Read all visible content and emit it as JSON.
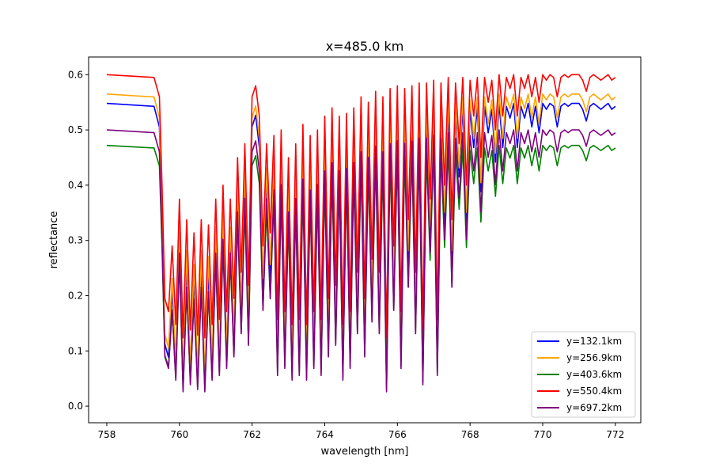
{
  "chart_data": {
    "type": "line",
    "title": "x=485.0 km",
    "xlabel": "wavelength [nm]",
    "ylabel": "reflectance",
    "xlim": [
      757.5,
      772.7
    ],
    "ylim": [
      -0.03,
      0.632
    ],
    "xticks": [
      758,
      760,
      762,
      764,
      766,
      768,
      770,
      772
    ],
    "yticks": [
      0.0,
      0.1,
      0.2,
      0.3,
      0.4,
      0.5,
      0.6
    ],
    "grid": false,
    "legend_position": "lower-right",
    "series": [
      {
        "name": "y=132.1km",
        "color": "#0000ff",
        "continuum": 0.548,
        "band_min": 0.015,
        "peak_scale": 0.915
      },
      {
        "name": "y=256.9km",
        "color": "#ffa500",
        "continuum": 0.565,
        "band_min": 0.03,
        "peak_scale": 0.94
      },
      {
        "name": "y=403.6km",
        "color": "#008000",
        "continuum": 0.472,
        "band_min": 0.01,
        "peak_scale": 0.89
      },
      {
        "name": "y=550.4km",
        "color": "#ff0000",
        "continuum": 0.6,
        "band_min": 0.1,
        "peak_scale": 0.95
      },
      {
        "name": "y=697.2km",
        "color": "#800080",
        "continuum": 0.5,
        "band_min": 0.005,
        "peak_scale": 0.85
      }
    ],
    "shape_x": [
      758.0,
      759.3,
      759.45,
      759.52,
      759.6,
      759.7,
      759.8,
      759.9,
      760.0,
      760.1,
      760.2,
      760.3,
      760.4,
      760.5,
      760.6,
      760.7,
      760.8,
      760.9,
      761.0,
      761.1,
      761.2,
      761.3,
      761.4,
      761.5,
      761.6,
      761.7,
      761.8,
      761.9,
      762.0,
      762.1,
      762.2,
      762.3,
      762.4,
      762.5,
      762.6,
      762.7,
      762.8,
      762.9,
      763.0,
      763.1,
      763.2,
      763.3,
      763.4,
      763.5,
      763.6,
      763.7,
      763.8,
      763.9,
      764.0,
      764.1,
      764.2,
      764.3,
      764.4,
      764.5,
      764.6,
      764.7,
      764.8,
      764.9,
      765.0,
      765.1,
      765.2,
      765.3,
      765.4,
      765.5,
      765.6,
      765.7,
      765.8,
      765.9,
      766.0,
      766.1,
      766.2,
      766.3,
      766.4,
      766.5,
      766.6,
      766.7,
      766.8,
      766.9,
      767.0,
      767.1,
      767.2,
      767.3,
      767.4,
      767.5,
      767.6,
      767.7,
      767.8,
      767.9,
      768.0,
      768.1,
      768.2,
      768.3,
      768.4,
      768.5,
      768.6,
      768.7,
      768.8,
      768.9,
      769.0,
      769.1,
      769.2,
      769.3,
      769.4,
      769.5,
      769.6,
      769.7,
      769.8,
      769.9,
      770.0,
      770.1,
      770.2,
      770.3,
      770.4,
      770.5,
      770.6,
      770.7,
      770.8,
      770.9,
      771.0,
      771.1,
      771.2,
      771.3,
      771.4,
      771.5,
      771.6,
      771.7,
      771.8,
      771.9,
      772.0
    ],
    "shape_f": [
      1.0,
      0.99,
      0.92,
      0.6,
      0.2,
      0.15,
      0.4,
      0.1,
      0.55,
      0.05,
      0.5,
      0.08,
      0.45,
      0.06,
      0.5,
      0.05,
      0.48,
      0.1,
      0.55,
      0.12,
      0.6,
      0.15,
      0.55,
      0.2,
      0.7,
      0.3,
      0.75,
      0.25,
      0.92,
      0.96,
      0.85,
      0.4,
      0.75,
      0.45,
      0.78,
      0.12,
      0.8,
      0.15,
      0.7,
      0.1,
      0.75,
      0.12,
      0.82,
      0.1,
      0.78,
      0.15,
      0.8,
      0.12,
      0.85,
      0.2,
      0.88,
      0.25,
      0.85,
      0.1,
      0.86,
      0.15,
      0.88,
      0.3,
      0.92,
      0.2,
      0.9,
      0.35,
      0.94,
      0.3,
      0.92,
      0.05,
      0.95,
      0.4,
      0.96,
      0.15,
      0.95,
      0.5,
      0.96,
      0.3,
      0.97,
      0.08,
      0.97,
      0.55,
      0.98,
      0.12,
      0.97,
      0.6,
      0.99,
      0.5,
      0.97,
      0.75,
      0.99,
      0.6,
      0.98,
      0.85,
      0.99,
      0.7,
      0.99,
      0.9,
      0.98,
      0.8,
      1.0,
      0.85,
      0.99,
      0.95,
      1.0,
      0.85,
      0.99,
      0.95,
      1.0,
      0.92,
      0.99,
      0.9,
      1.0,
      0.98,
      1.0,
      0.99,
      0.92,
      0.99,
      1.0,
      0.99,
      1.0,
      1.0,
      1.0,
      0.98,
      0.94,
      0.99,
      1.0,
      0.99,
      0.98,
      0.99,
      1.0,
      0.98,
      0.99
    ]
  }
}
